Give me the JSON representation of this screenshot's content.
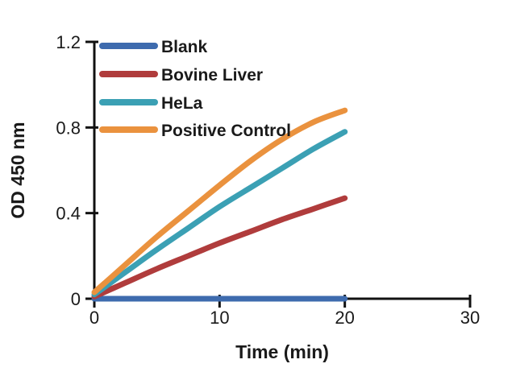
{
  "figure": {
    "background": "#ffffff",
    "axis_color": "#111111",
    "text_color": "#1a1a1a"
  },
  "chart_data": {
    "type": "line",
    "title": "",
    "xlabel": "Time (min)",
    "ylabel": "OD 450 nm",
    "xlim": [
      0,
      30
    ],
    "ylim": [
      0,
      1.2
    ],
    "xticks": [
      0,
      10,
      20,
      30
    ],
    "yticks": [
      0,
      0.4,
      0.8,
      1.2
    ],
    "grid": false,
    "legend_position": "top-left-inside",
    "x": [
      0,
      2.5,
      5,
      7.5,
      10,
      12.5,
      15,
      17.5,
      20
    ],
    "series": [
      {
        "name": "Blank",
        "color": "#3E6BAE",
        "values": [
          0,
          0,
          0,
          0,
          0,
          0,
          0,
          0,
          0
        ]
      },
      {
        "name": "Bovine Liver",
        "color": "#B03C3C",
        "values": [
          0.01,
          0.075,
          0.14,
          0.2,
          0.26,
          0.315,
          0.37,
          0.42,
          0.47
        ]
      },
      {
        "name": "HeLa",
        "color": "#3BA0B4",
        "values": [
          0.02,
          0.125,
          0.23,
          0.33,
          0.43,
          0.52,
          0.61,
          0.7,
          0.78
        ]
      },
      {
        "name": "Positive Control",
        "color": "#EA923E",
        "values": [
          0.03,
          0.16,
          0.29,
          0.41,
          0.53,
          0.645,
          0.745,
          0.825,
          0.88
        ]
      }
    ]
  }
}
